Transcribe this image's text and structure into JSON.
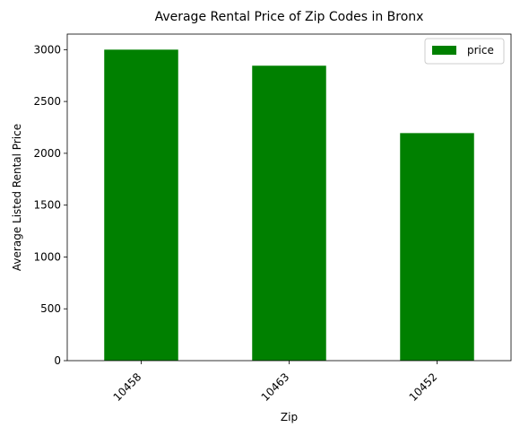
{
  "chart_data": {
    "type": "bar",
    "title": "Average Rental Price of Zip Codes in Bronx",
    "xlabel": "Zip",
    "ylabel": "Average Listed Rental Price",
    "categories": [
      "10458",
      "10463",
      "10452"
    ],
    "series": [
      {
        "name": "price",
        "values": [
          3000,
          2845,
          2195
        ],
        "color": "#008000"
      }
    ],
    "ylim": [
      0,
      3150
    ],
    "yticks": [
      0,
      500,
      1000,
      1500,
      2000,
      2500,
      3000
    ],
    "grid": false,
    "legend_position": "top-right",
    "xtick_rotation": -45
  }
}
